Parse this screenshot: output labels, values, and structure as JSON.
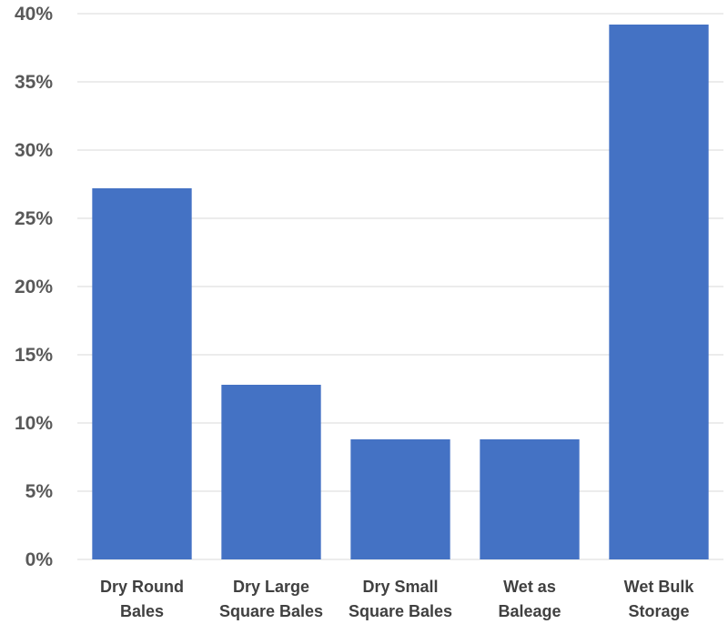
{
  "chart_data": {
    "type": "bar",
    "title": "",
    "xlabel": "",
    "ylabel": "",
    "categories": [
      [
        "Dry Round",
        "Bales"
      ],
      [
        "Dry Large",
        "Square Bales"
      ],
      [
        "Dry Small",
        "Square Bales"
      ],
      [
        "Wet as",
        "Baleage"
      ],
      [
        "Wet Bulk",
        "Storage"
      ]
    ],
    "values": [
      27.2,
      12.8,
      8.8,
      8.8,
      39.2
    ],
    "ylim": [
      0,
      40
    ],
    "yticks": [
      0,
      5,
      10,
      15,
      20,
      25,
      30,
      35,
      40
    ],
    "ytick_labels": [
      "0%",
      "5%",
      "10%",
      "15%",
      "20%",
      "25%",
      "30%",
      "35%",
      "40%"
    ],
    "bar_color": "#4472c4",
    "grid": true,
    "legend": "none"
  }
}
